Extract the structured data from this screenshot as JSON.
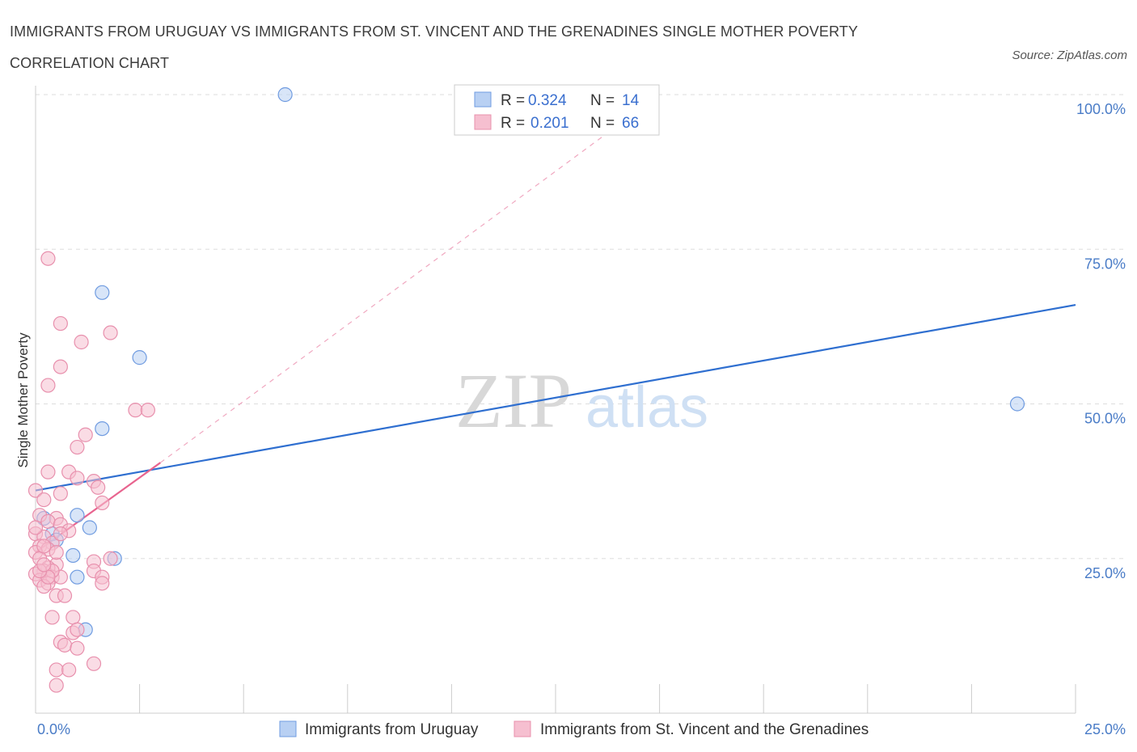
{
  "header": {
    "title": "IMMIGRANTS FROM URUGUAY VS IMMIGRANTS FROM ST. VINCENT AND THE GRENADINES SINGLE MOTHER POVERTY CORRELATION CHART",
    "source": "Source: ZipAtlas.com"
  },
  "colors": {
    "blue": "#2f6fd0",
    "blue_fill": "#b8d0f3",
    "pink": "#e8648f",
    "pink_fill": "#f6bfd0",
    "grid": "#dddddd"
  },
  "chart_data": {
    "type": "scatter",
    "title": "Immigrants from Uruguay vs Immigrants from St. Vincent and the Grenadines Single Mother Poverty Correlation Chart",
    "xlabel": "",
    "ylabel": "Single Mother Poverty",
    "xlim": [
      0,
      25
    ],
    "ylim": [
      0,
      100
    ],
    "x_tick_labels": [
      "0.0%",
      "25.0%"
    ],
    "y_tick_labels": [
      "25.0%",
      "50.0%",
      "75.0%",
      "100.0%"
    ],
    "y_ticks": [
      25,
      50,
      75,
      100
    ],
    "watermark": [
      "ZIP",
      "atlas"
    ],
    "legend": {
      "rows": [
        {
          "r_label": "R =",
          "r": "0.324",
          "n_label": "N =",
          "n": "14"
        },
        {
          "r_label": "R =",
          "r": "0.201",
          "n_label": "N =",
          "n": "66"
        }
      ]
    },
    "series": [
      {
        "name": "Immigrants from Uruguay",
        "color": "blue",
        "points": [
          [
            6.0,
            100.0
          ],
          [
            1.6,
            68.0
          ],
          [
            2.5,
            57.5
          ],
          [
            1.6,
            46.0
          ],
          [
            23.6,
            50.0
          ],
          [
            1.0,
            32.0
          ],
          [
            1.3,
            30.0
          ],
          [
            0.4,
            29.0
          ],
          [
            0.2,
            31.5
          ],
          [
            0.9,
            25.5
          ],
          [
            1.0,
            22.0
          ],
          [
            1.9,
            25.0
          ],
          [
            1.2,
            13.5
          ],
          [
            0.5,
            28.0
          ]
        ],
        "trend": {
          "x0": 0,
          "y0": 36.0,
          "x1": 25,
          "y1": 66.0
        }
      },
      {
        "name": "Immigrants from St. Vincent and the Grenadines",
        "color": "pink",
        "points": [
          [
            0.3,
            73.5
          ],
          [
            0.6,
            63.0
          ],
          [
            1.1,
            60.0
          ],
          [
            1.8,
            61.5
          ],
          [
            0.6,
            56.0
          ],
          [
            0.3,
            53.0
          ],
          [
            2.4,
            49.0
          ],
          [
            2.7,
            49.0
          ],
          [
            1.2,
            45.0
          ],
          [
            1.0,
            43.0
          ],
          [
            0.3,
            39.0
          ],
          [
            0.8,
            39.0
          ],
          [
            1.4,
            37.5
          ],
          [
            0.0,
            36.0
          ],
          [
            0.6,
            35.5
          ],
          [
            1.5,
            36.5
          ],
          [
            1.6,
            34.0
          ],
          [
            0.2,
            34.5
          ],
          [
            1.0,
            38.0
          ],
          [
            0.1,
            32.0
          ],
          [
            0.5,
            31.5
          ],
          [
            0.3,
            31.0
          ],
          [
            0.6,
            30.5
          ],
          [
            0.8,
            29.5
          ],
          [
            0.0,
            29.0
          ],
          [
            0.2,
            28.5
          ],
          [
            0.4,
            27.5
          ],
          [
            0.1,
            27.0
          ],
          [
            0.3,
            26.5
          ],
          [
            0.0,
            26.0
          ],
          [
            0.1,
            25.0
          ],
          [
            0.5,
            24.0
          ],
          [
            0.3,
            23.5
          ],
          [
            0.2,
            23.0
          ],
          [
            0.0,
            22.5
          ],
          [
            0.4,
            22.0
          ],
          [
            0.6,
            22.0
          ],
          [
            0.1,
            21.5
          ],
          [
            0.3,
            21.0
          ],
          [
            0.2,
            20.5
          ],
          [
            0.5,
            19.0
          ],
          [
            0.7,
            19.0
          ],
          [
            1.4,
            24.5
          ],
          [
            1.4,
            23.0
          ],
          [
            1.6,
            22.0
          ],
          [
            1.6,
            21.0
          ],
          [
            1.8,
            25.0
          ],
          [
            0.4,
            15.5
          ],
          [
            0.9,
            15.5
          ],
          [
            0.9,
            13.0
          ],
          [
            1.0,
            13.5
          ],
          [
            0.6,
            11.5
          ],
          [
            0.7,
            11.0
          ],
          [
            1.0,
            10.5
          ],
          [
            0.5,
            7.0
          ],
          [
            0.8,
            7.0
          ],
          [
            1.4,
            8.0
          ],
          [
            0.5,
            4.5
          ],
          [
            0.0,
            30.0
          ],
          [
            0.2,
            27.0
          ],
          [
            0.4,
            23.0
          ],
          [
            0.6,
            29.0
          ],
          [
            0.3,
            22.0
          ],
          [
            0.1,
            23.0
          ],
          [
            0.5,
            26.0
          ],
          [
            0.2,
            24.0
          ]
        ],
        "trend": {
          "x0": 0,
          "y0": 26.0,
          "x1": 3.0,
          "y1": 40.5
        },
        "trend_extension": {
          "x0": 3.0,
          "y0": 40.5,
          "x1": 15.0,
          "y1": 100.0
        }
      }
    ]
  }
}
